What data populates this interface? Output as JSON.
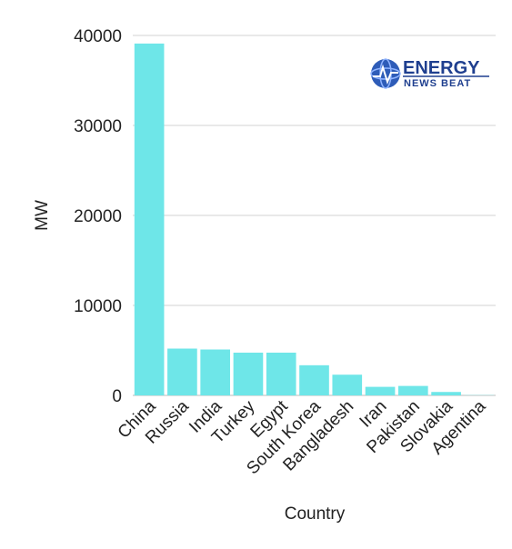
{
  "chart_data": {
    "type": "bar",
    "categories": [
      "China",
      "Russia",
      "India",
      "Turkey",
      "Egypt",
      "South Korea",
      "Bangladesh",
      "Iran",
      "Pakistan",
      "Slovakia",
      "Agentina"
    ],
    "values": [
      39100,
      5200,
      5100,
      4750,
      4750,
      3350,
      2300,
      950,
      1050,
      380,
      25
    ],
    "xlabel": "Country",
    "ylabel": "MW",
    "ylim": [
      0,
      40000
    ],
    "yticks": [
      0,
      10000,
      20000,
      30000,
      40000
    ],
    "grid": true,
    "bar_color": "#6ee6e8"
  },
  "logo": {
    "line1": "ENERGY",
    "line2": "NEWS BEAT",
    "color": "#1f3f8f"
  }
}
